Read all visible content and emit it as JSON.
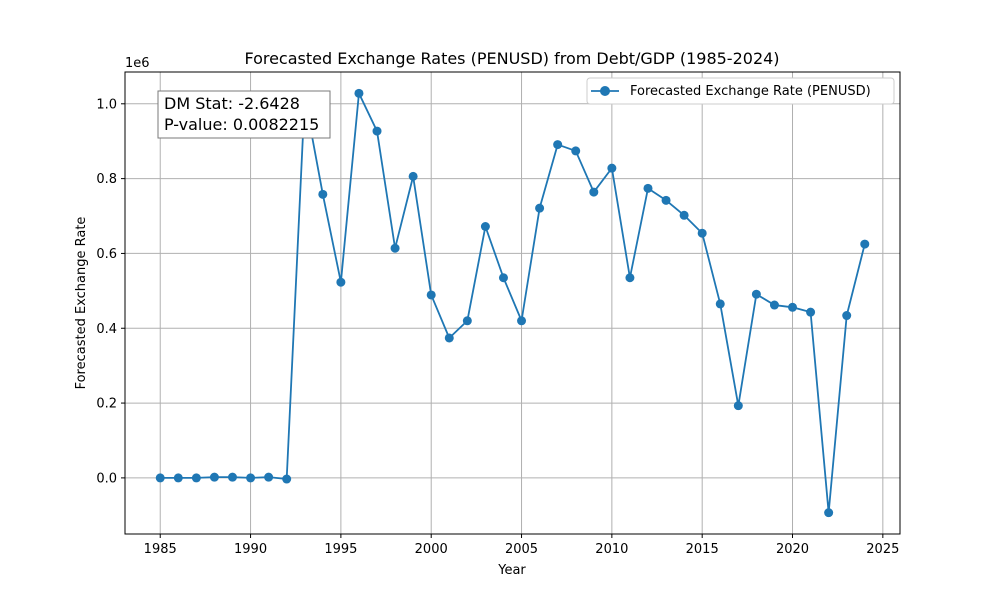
{
  "chart_data": {
    "type": "line",
    "title": "Forecasted Exchange Rates (PENUSD) from Debt/GDP (1985-2024)",
    "xlabel": "Year",
    "ylabel": "Forecasted Exchange Rate",
    "y_offset_label": "1e6",
    "xlim": [
      1983.05,
      2025.95
    ],
    "ylim": [
      -150000,
      1085000
    ],
    "x_ticks": [
      1985,
      1990,
      1995,
      2000,
      2005,
      2010,
      2015,
      2020,
      2025
    ],
    "x_tick_labels": [
      "1985",
      "1990",
      "1995",
      "2000",
      "2005",
      "2010",
      "2015",
      "2020",
      "2025"
    ],
    "y_ticks": [
      0,
      200000,
      400000,
      600000,
      800000,
      1000000
    ],
    "y_tick_labels": [
      "0.0",
      "0.2",
      "0.4",
      "0.6",
      "0.8",
      "1.0"
    ],
    "grid": true,
    "legend_position": "top-right",
    "series": [
      {
        "name": "Forecasted Exchange Rate (PENUSD)",
        "color": "#1f77b4",
        "x": [
          1985,
          1986,
          1987,
          1988,
          1989,
          1990,
          1991,
          1992,
          1993,
          1994,
          1995,
          1996,
          1997,
          1998,
          1999,
          2000,
          2001,
          2002,
          2003,
          2004,
          2005,
          2006,
          2007,
          2008,
          2009,
          2010,
          2011,
          2012,
          2013,
          2014,
          2015,
          2016,
          2017,
          2018,
          2019,
          2020,
          2021,
          2022,
          2023,
          2024
        ],
        "y": [
          0,
          0,
          0,
          2000,
          2000,
          0,
          2000,
          -3000,
          1018000,
          758000,
          523000,
          1028000,
          927000,
          614000,
          806000,
          489000,
          374000,
          420000,
          672000,
          535000,
          420000,
          721000,
          891000,
          874000,
          764000,
          828000,
          535000,
          774000,
          742000,
          702000,
          654000,
          465000,
          193000,
          491000,
          462000,
          456000,
          443000,
          -93000,
          434000,
          625000
        ]
      }
    ],
    "annotation": {
      "line1": "DM Stat: -2.6428",
      "line2": "P-value: 0.0082215"
    }
  }
}
